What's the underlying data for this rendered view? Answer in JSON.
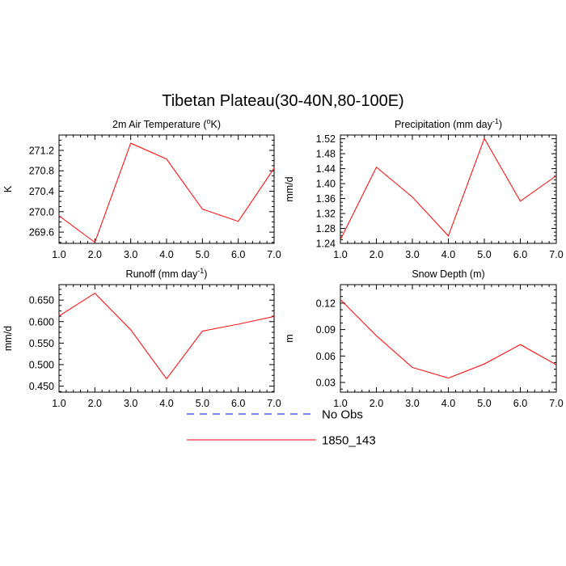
{
  "figure": {
    "title": "Tibetan Plateau(30-40N,80-100E)"
  },
  "chart_data": [
    {
      "type": "line",
      "title_parts": [
        "2m Air Temperature (",
        "o",
        "K)"
      ],
      "title_super_index": 1,
      "ylabel": "K",
      "xlabel": "",
      "x": [
        1,
        2,
        3,
        4,
        5,
        6,
        7
      ],
      "x_tick_labels": [
        "1.0",
        "2.0",
        "3.0",
        "4.0",
        "5.0",
        "6.0",
        "7.0"
      ],
      "xlim": [
        1,
        7
      ],
      "ylim": [
        269.38,
        271.5
      ],
      "y_ticks": [
        269.6,
        270.0,
        270.4,
        270.8,
        271.2
      ],
      "y_tick_labels": [
        "269.6",
        "270.0",
        "270.4",
        "270.8",
        "271.2"
      ],
      "y_minor_step": 0.1,
      "series": [
        {
          "name": "1850_143",
          "color": "#ff0000",
          "values": [
            269.92,
            269.4,
            271.34,
            271.03,
            270.05,
            269.81,
            270.85
          ]
        }
      ]
    },
    {
      "type": "line",
      "title_parts": [
        "Precipitation (mm day",
        "-1",
        ")"
      ],
      "title_super_index": 1,
      "ylabel": "mm/d",
      "xlabel": "",
      "x": [
        1,
        2,
        3,
        4,
        5,
        6,
        7
      ],
      "x_tick_labels": [
        "1.0",
        "2.0",
        "3.0",
        "4.0",
        "5.0",
        "6.0",
        "7.0"
      ],
      "xlim": [
        1,
        7
      ],
      "ylim": [
        1.24,
        1.53
      ],
      "y_ticks": [
        1.24,
        1.28,
        1.32,
        1.36,
        1.4,
        1.44,
        1.48,
        1.52
      ],
      "y_tick_labels": [
        "1.24",
        "1.28",
        "1.32",
        "1.36",
        "1.40",
        "1.44",
        "1.48",
        "1.52"
      ],
      "y_minor_step": 0.01,
      "series": [
        {
          "name": "1850_143",
          "color": "#ff0000",
          "values": [
            1.25,
            1.444,
            1.364,
            1.26,
            1.521,
            1.353,
            1.421
          ]
        }
      ]
    },
    {
      "type": "line",
      "title_parts": [
        "Runoff (mm day",
        "-1",
        ")"
      ],
      "title_super_index": 1,
      "ylabel": "mm/d",
      "xlabel": "",
      "x": [
        1,
        2,
        3,
        4,
        5,
        6,
        7
      ],
      "x_tick_labels": [
        "1.0",
        "2.0",
        "3.0",
        "4.0",
        "5.0",
        "6.0",
        "7.0"
      ],
      "xlim": [
        1,
        7
      ],
      "ylim": [
        0.436,
        0.686
      ],
      "y_ticks": [
        0.45,
        0.5,
        0.55,
        0.6,
        0.65
      ],
      "y_tick_labels": [
        "0.450",
        "0.500",
        "0.550",
        "0.600",
        "0.650"
      ],
      "y_minor_step": 0.0125,
      "series": [
        {
          "name": "1850_143",
          "color": "#ff0000",
          "values": [
            0.613,
            0.666,
            0.581,
            0.467,
            0.578,
            0.594,
            0.612
          ]
        }
      ]
    },
    {
      "type": "line",
      "title_parts": [
        "Snow Depth (m)"
      ],
      "title_super_index": -1,
      "ylabel": "m",
      "xlabel": "",
      "x": [
        1,
        2,
        3,
        4,
        5,
        6,
        7
      ],
      "x_tick_labels": [
        "1.0",
        "2.0",
        "3.0",
        "4.0",
        "5.0",
        "6.0",
        "7.0"
      ],
      "xlim": [
        1,
        7
      ],
      "ylim": [
        0.019,
        0.141
      ],
      "y_ticks": [
        0.03,
        0.06,
        0.09,
        0.12
      ],
      "y_tick_labels": [
        "0.03",
        "0.06",
        "0.09",
        "0.12"
      ],
      "y_minor_step": 0.0075,
      "series": [
        {
          "name": "1850_143",
          "color": "#ff0000",
          "values": [
            0.124,
            0.083,
            0.047,
            0.035,
            0.051,
            0.073,
            0.05
          ]
        }
      ]
    }
  ],
  "legend": {
    "placement": "bottom-center",
    "items": [
      {
        "label": "No Obs",
        "color": "#0000ff",
        "style": "dashed"
      },
      {
        "label": "1850_143",
        "color": "#ff0000",
        "style": "solid"
      }
    ]
  }
}
